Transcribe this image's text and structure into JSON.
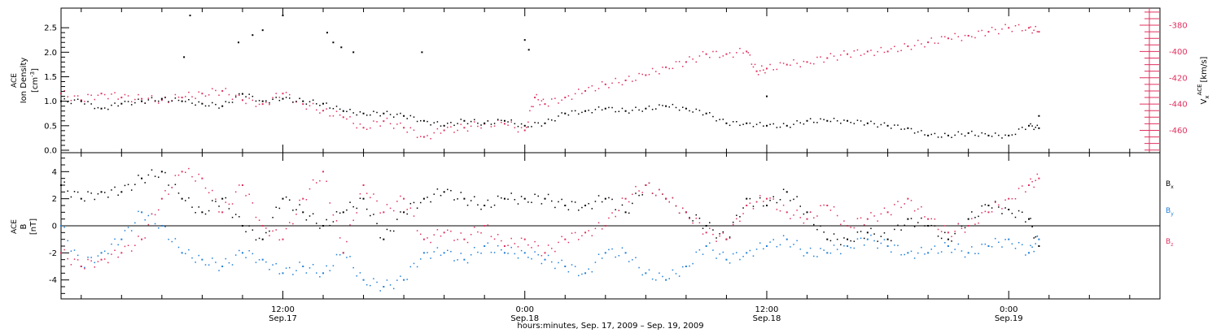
{
  "figure": {
    "x_axis_title": "hours:minutes, Sep. 17, 2009 – Sep. 19, 2009",
    "x_ticks": [
      {
        "line1": "12:00",
        "line2": "Sep.17",
        "hour": 12
      },
      {
        "line1": "0:00",
        "line2": "Sep.18",
        "hour": 24
      },
      {
        "line1": "12:00",
        "line2": "Sep.18",
        "hour": 36
      },
      {
        "line1": "0:00",
        "line2": "Sep.19",
        "hour": 48
      }
    ]
  },
  "chart_data": [
    {
      "type": "scatter",
      "panel": "top",
      "xlim": [
        1,
        55.5
      ],
      "x_unit": "hours since 2009-09-17 00:00",
      "left_axis": {
        "label_lines": [
          "ACE",
          "Ion Density"
        ],
        "unit_base": "[cm",
        "unit_sup": "-3",
        "unit_end": "]",
        "ylim": [
          -0.05,
          2.9
        ],
        "ticks": [
          "0.0",
          "0.5",
          "1.0",
          "1.5",
          "2.0",
          "2.5"
        ],
        "tick_values": [
          0.0,
          0.5,
          1.0,
          1.5,
          2.0,
          2.5
        ],
        "color": "#000000"
      },
      "right_axis": {
        "label_main": "V",
        "label_sub": "x",
        "label_sup": "ACE",
        "unit": "[km/s]",
        "ylim": [
          -477,
          -367
        ],
        "ticks": [
          "-380",
          "-400",
          "-420",
          "-440",
          "-460"
        ],
        "tick_values": [
          -380,
          -400,
          -420,
          -440,
          -460
        ],
        "color": "#e0305f"
      },
      "series": [
        {
          "name": "Ion Density",
          "axis": "left",
          "color": "#000000",
          "x": [
            1,
            2,
            3,
            4,
            5,
            6,
            7,
            8,
            9,
            10,
            11,
            12,
            13,
            14,
            15,
            16,
            17,
            18,
            19,
            20,
            21,
            22,
            23,
            24,
            25,
            26,
            27,
            28,
            29,
            30,
            31,
            32,
            33,
            34,
            35,
            36,
            37,
            38,
            39,
            40,
            41,
            42,
            43,
            44,
            45,
            46,
            47,
            48,
            49,
            49.5
          ],
          "y": [
            1.0,
            1.0,
            0.85,
            0.95,
            1.0,
            1.05,
            1.0,
            0.95,
            0.9,
            1.15,
            1.0,
            1.05,
            1.0,
            0.95,
            0.8,
            0.75,
            0.75,
            0.7,
            0.6,
            0.5,
            0.6,
            0.55,
            0.6,
            0.5,
            0.55,
            0.75,
            0.8,
            0.85,
            0.8,
            0.85,
            0.9,
            0.85,
            0.75,
            0.55,
            0.55,
            0.5,
            0.5,
            0.6,
            0.6,
            0.6,
            0.55,
            0.5,
            0.45,
            0.3,
            0.3,
            0.35,
            0.3,
            0.3,
            0.5,
            0.45
          ],
          "spikes": [
            {
              "x": 7.1,
              "y": 1.9
            },
            {
              "x": 7.4,
              "y": 2.75
            },
            {
              "x": 9.8,
              "y": 2.2
            },
            {
              "x": 10.5,
              "y": 2.35
            },
            {
              "x": 11,
              "y": 2.45
            },
            {
              "x": 12,
              "y": 2.75
            },
            {
              "x": 14.2,
              "y": 2.4
            },
            {
              "x": 14.5,
              "y": 2.2
            },
            {
              "x": 14.9,
              "y": 2.1
            },
            {
              "x": 15.5,
              "y": 2.0
            },
            {
              "x": 18.9,
              "y": 2.0
            },
            {
              "x": 24,
              "y": 2.25
            },
            {
              "x": 24.2,
              "y": 2.05
            },
            {
              "x": 36,
              "y": 1.1
            },
            {
              "x": 49.5,
              "y": 0.7
            }
          ]
        },
        {
          "name": "Vx",
          "axis": "right",
          "color": "#e0305f",
          "x": [
            1,
            2,
            3,
            4,
            5,
            6,
            7,
            8,
            9,
            10,
            11,
            12,
            13,
            14,
            15,
            16,
            17,
            18,
            19,
            20,
            21,
            22,
            23,
            24,
            24.5,
            25,
            26,
            27,
            28,
            29,
            30,
            31,
            32,
            33,
            34,
            35,
            35.5,
            36,
            37,
            38,
            39,
            40,
            41,
            42,
            43,
            44,
            45,
            46,
            47,
            48,
            49,
            49.5
          ],
          "y": [
            -432,
            -437,
            -432,
            -435,
            -436,
            -437,
            -435,
            -432,
            -430,
            -437,
            -440,
            -432,
            -440,
            -445,
            -450,
            -458,
            -453,
            -458,
            -465,
            -460,
            -458,
            -455,
            -455,
            -460,
            -435,
            -440,
            -435,
            -430,
            -425,
            -422,
            -418,
            -412,
            -408,
            -402,
            -402,
            -400,
            -415,
            -413,
            -410,
            -408,
            -405,
            -402,
            -400,
            -400,
            -396,
            -393,
            -390,
            -388,
            -385,
            -382,
            -382,
            -385
          ]
        }
      ]
    },
    {
      "type": "scatter",
      "panel": "bottom",
      "xlim": [
        1,
        55.5
      ],
      "x_unit": "hours since 2009-09-17 00:00",
      "left_axis": {
        "label_lines": [
          "ACE",
          "B"
        ],
        "unit": "[nT]",
        "ylim": [
          -5.4,
          5.4
        ],
        "ticks": [
          "4",
          "2",
          "0",
          "-2",
          "-4"
        ],
        "tick_values": [
          4,
          2,
          0,
          -2,
          -4
        ],
        "zero_line": true
      },
      "legend": [
        {
          "main": "B",
          "sub": "x",
          "color": "#000000"
        },
        {
          "main": "B",
          "sub": "y",
          "color": "#1e7fd8"
        },
        {
          "main": "B",
          "sub": "z",
          "color": "#e0305f"
        }
      ],
      "series": [
        {
          "name": "Bx",
          "color": "#000000",
          "x": [
            1,
            2,
            3,
            4,
            5,
            6,
            7,
            8,
            9,
            10,
            11,
            12,
            13,
            14,
            15,
            16,
            17,
            18,
            19,
            20,
            21,
            22,
            23,
            24,
            25,
            26,
            27,
            28,
            29,
            30,
            31,
            32,
            33,
            34,
            35,
            36,
            37,
            38,
            39,
            40,
            41,
            42,
            43,
            44,
            45,
            46,
            47,
            48,
            49,
            49.5
          ],
          "y": [
            3,
            2,
            2.5,
            2.5,
            3.5,
            4,
            2,
            1,
            2,
            0,
            -1,
            2,
            1,
            0,
            1,
            2,
            -1,
            1,
            2,
            2.5,
            2,
            1.5,
            2,
            2,
            2,
            1.5,
            1.5,
            2,
            1,
            3,
            2,
            1,
            0,
            -1,
            2,
            1.5,
            2.5,
            1,
            -1,
            -1,
            -0.5,
            -1,
            0.5,
            0,
            -1,
            0.5,
            1.5,
            1.2,
            0.5,
            -1.5
          ]
        },
        {
          "name": "By",
          "color": "#1e7fd8",
          "x": [
            1,
            2,
            3,
            4,
            5,
            6,
            7,
            8,
            9,
            10,
            11,
            12,
            13,
            14,
            15,
            16,
            17,
            18,
            19,
            20,
            21,
            22,
            23,
            24,
            25,
            26,
            27,
            28,
            29,
            30,
            31,
            32,
            33,
            34,
            35,
            36,
            37,
            38,
            39,
            40,
            41,
            42,
            43,
            44,
            45,
            46,
            47,
            48,
            49,
            49.5
          ],
          "y": [
            0,
            -3,
            -2,
            -1,
            1,
            0,
            -2,
            -2.5,
            -3,
            -2,
            -2.5,
            -3.5,
            -3,
            -3.5,
            -2,
            -4,
            -4.5,
            -4,
            -2,
            -2,
            -2.5,
            -1.5,
            -2,
            -2,
            -2.5,
            -3,
            -3.5,
            -2,
            -2,
            -3.5,
            -4,
            -3,
            -1.5,
            -2.5,
            -2,
            -1.5,
            -1,
            -2,
            -2,
            -1.5,
            -1,
            -1.5,
            -2,
            -2,
            -1.5,
            -2,
            -1.5,
            -1,
            -2,
            -1
          ]
        },
        {
          "name": "Bz",
          "color": "#e0305f",
          "x": [
            1,
            2,
            3,
            4,
            5,
            6,
            7,
            8,
            9,
            10,
            11,
            12,
            13,
            14,
            15,
            16,
            17,
            18,
            19,
            20,
            21,
            22,
            23,
            24,
            25,
            26,
            27,
            28,
            29,
            30,
            31,
            32,
            33,
            34,
            35,
            36,
            37,
            38,
            39,
            40,
            41,
            42,
            43,
            44,
            45,
            46,
            47,
            48,
            49,
            49.5
          ],
          "y": [
            -2,
            -3,
            -2.5,
            -2,
            -1,
            2,
            4,
            3.5,
            1,
            3,
            0,
            -1,
            2,
            4,
            -2,
            3,
            1,
            2,
            -1,
            -0.5,
            -1,
            0,
            -1.5,
            -1,
            -2,
            -1,
            -0.5,
            0,
            2,
            3,
            2,
            1,
            -0.5,
            -1,
            1.5,
            2,
            1,
            0.5,
            1.5,
            0,
            0.5,
            1,
            2,
            0.5,
            -0.5,
            0,
            1,
            2,
            3,
            3.5
          ]
        }
      ]
    }
  ]
}
